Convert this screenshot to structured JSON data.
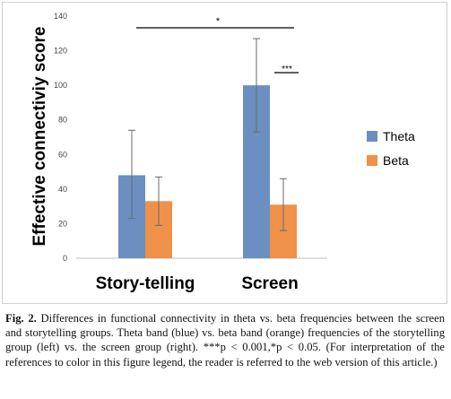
{
  "chart_data": {
    "type": "bar",
    "categories": [
      "Story-telling",
      "Screen"
    ],
    "series": [
      {
        "name": "Theta",
        "color": "#6a8fc0",
        "values": [
          48,
          100
        ],
        "err_low": [
          23,
          73
        ],
        "err_high": [
          74,
          127
        ]
      },
      {
        "name": "Beta",
        "color": "#ef9149",
        "values": [
          33,
          31
        ],
        "err_low": [
          19,
          16
        ],
        "err_high": [
          47,
          46
        ]
      }
    ],
    "ylabel": "Effective connectiviy score",
    "xlabel": "",
    "ylim": [
      0,
      140
    ],
    "yticks": [
      0,
      20,
      40,
      60,
      80,
      100,
      120,
      140
    ],
    "legend_position": "right",
    "grid": false,
    "significance": [
      {
        "label": "*",
        "between": "Story-telling vs Screen"
      },
      {
        "label": "***",
        "between": "Screen Theta vs Beta"
      }
    ]
  },
  "caption": {
    "label": "Fig. 2.",
    "text": "Differences in functional connectivity in theta vs. beta frequencies between the screen and storytelling groups. Theta band (blue) vs. beta band (orange) frequencies of the storytelling group (left) vs. the screen group (right). ***p < 0.001,*p < 0.05. (For interpretation of the references to color in this figure legend, the reader is referred to the web version of this article.)"
  }
}
